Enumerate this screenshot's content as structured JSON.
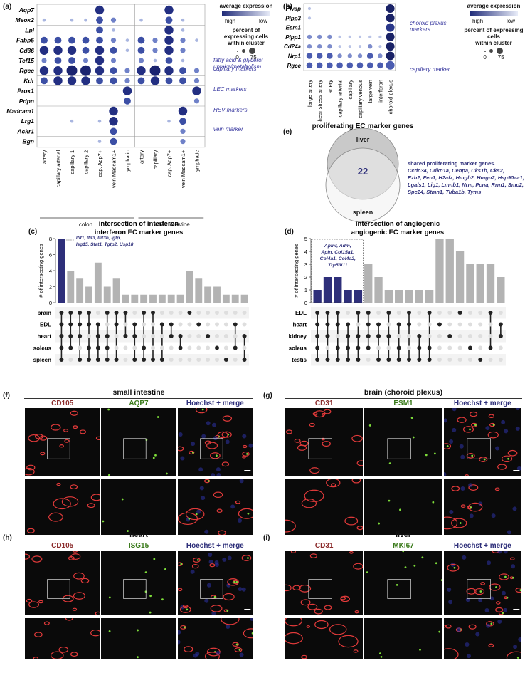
{
  "panels": {
    "a": "(a)",
    "b": "(b)",
    "c": "(c)",
    "d": "(d)",
    "e": "(e)",
    "f": "(f)",
    "g": "(g)",
    "h": "(h)",
    "i": "(i)"
  },
  "legend_a": {
    "avg_expr": "average expression",
    "high": "high",
    "low": "low",
    "pct": "percent of expressing cells",
    "pct2": "within cluster",
    "s0": "0",
    "s75": "75"
  },
  "legend_b": {
    "avg_expr": "average expression",
    "high": "high",
    "low": "low",
    "pct": "percent of expressing cells",
    "pct2": "within cluster",
    "s0": "0",
    "s75": "75"
  },
  "dotplot_a": {
    "genes": [
      "Aqp7",
      "Meox2",
      "Lpl",
      "Fabp5",
      "Cd36",
      "Tcf15",
      "Rgcc",
      "Kdr",
      "Prox1",
      "Pdpn",
      "Madcam1",
      "Lrg1",
      "Ackr1",
      "Bgn"
    ],
    "clusters": [
      "artery",
      "capillary arterial",
      "capillary 1",
      "capillary 2",
      "cap. Aqp7+",
      "vein Madcam1+",
      "lymphatic",
      "artery",
      "capillary",
      "cap. Aqp7+",
      "vein Madcam1+",
      "lymphatic"
    ],
    "groups": [
      "colon",
      "small intestine"
    ],
    "annotations": [
      "fatty acid & glycerol",
      "uptake/metabolism",
      "capillary markers",
      "LEC markers",
      "HEV markers",
      "vein marker"
    ]
  },
  "dotplot_b": {
    "genes": [
      "Plvap",
      "Plpp3",
      "Esm1",
      "Plpp1",
      "Cd24a",
      "Nrp1",
      "Rgcc"
    ],
    "clusters": [
      "large artery",
      "shear stress artery",
      "artery",
      "capillary arterial",
      "capillary",
      "capillary venous",
      "large vein",
      "interferon",
      "choroid plexus"
    ],
    "annotations": [
      "choroid plexus",
      "markers",
      "capillary marker"
    ]
  },
  "venn_e": {
    "title": "proliferating EC marker genes",
    "set1": "liver",
    "set2": "spleen",
    "count": "22",
    "shared_title": "shared proliferating marker genes.",
    "shared_genes": [
      "Ccdc34, Cdkn1a, Cenpa, Cks1b, Cks2,",
      "Ezh2, Fen1, H2afz, Hmgb2, Hmgn2, Hsp90aa1,",
      "Lgals1, Lig1, Lmnb1, Nrm, Pcna, Rrm1, Smc2,",
      "Spc24, Stmn1, Tuba1b, Tyms"
    ]
  },
  "chart_data": [
    {
      "type": "bar",
      "title": "intersection of interferon EC marker genes",
      "ylabel": "# of intersecting genes",
      "ylim": [
        0,
        8
      ],
      "yticks": [
        "0",
        "2",
        "4",
        "6",
        "8"
      ],
      "sets": [
        "brain",
        "EDL",
        "heart",
        "soleus",
        "spleen"
      ],
      "values": [
        8,
        4,
        3,
        2,
        5,
        2,
        3,
        1,
        1,
        1,
        1,
        1,
        1,
        1,
        4,
        3,
        2,
        2,
        1,
        1,
        1
      ],
      "highlight_count": 1,
      "callout": [
        "Ifit1, Ifit3, Ifit3b, Igtp,",
        "Isg15, Stat1, Tgtp2, Usp18"
      ],
      "membership": [
        [
          1,
          1,
          1,
          1,
          1
        ],
        [
          1,
          1,
          1,
          1,
          0
        ],
        [
          1,
          1,
          1,
          0,
          1
        ],
        [
          1,
          1,
          0,
          1,
          1
        ],
        [
          0,
          1,
          1,
          1,
          1
        ],
        [
          1,
          0,
          1,
          1,
          1
        ],
        [
          1,
          1,
          0,
          0,
          1
        ],
        [
          1,
          0,
          1,
          0,
          0
        ],
        [
          0,
          1,
          1,
          0,
          1
        ],
        [
          1,
          0,
          0,
          1,
          1
        ],
        [
          1,
          0,
          0,
          0,
          1
        ],
        [
          0,
          1,
          0,
          0,
          1
        ],
        [
          0,
          1,
          1,
          0,
          0
        ],
        [
          0,
          0,
          1,
          1,
          0
        ],
        [
          1,
          0,
          0,
          0,
          0
        ],
        [
          0,
          1,
          0,
          0,
          0
        ],
        [
          0,
          0,
          1,
          0,
          0
        ],
        [
          0,
          0,
          0,
          1,
          0
        ],
        [
          0,
          0,
          0,
          0,
          1
        ],
        [
          0,
          1,
          0,
          1,
          0
        ],
        [
          0,
          0,
          1,
          0,
          1
        ]
      ]
    },
    {
      "type": "bar",
      "title": "intersection of angiogenic EC marker genes",
      "ylabel": "# of intersecting genes",
      "ylim": [
        0,
        5
      ],
      "yticks": [
        "0",
        "1",
        "2",
        "3",
        "4",
        "5"
      ],
      "sets": [
        "EDL",
        "heart",
        "kidney",
        "soleus",
        "testis"
      ],
      "values": [
        1,
        2,
        2,
        1,
        1,
        3,
        2,
        1,
        1,
        1,
        1,
        1,
        5,
        5,
        4,
        3,
        3,
        3,
        2
      ],
      "highlight_count": 5,
      "callout": [
        "Aplnr, Adm,",
        "Apln, Col15a1,",
        "Col4a1, Col4a2,",
        "Trp53i11"
      ],
      "membership": [
        [
          1,
          1,
          1,
          1,
          1
        ],
        [
          1,
          1,
          1,
          0,
          1
        ],
        [
          1,
          1,
          0,
          1,
          1
        ],
        [
          0,
          1,
          1,
          1,
          1
        ],
        [
          1,
          0,
          1,
          1,
          1
        ],
        [
          1,
          1,
          1,
          1,
          0
        ],
        [
          0,
          1,
          1,
          0,
          1
        ],
        [
          1,
          0,
          1,
          0,
          1
        ],
        [
          0,
          1,
          0,
          1,
          1
        ],
        [
          1,
          1,
          0,
          0,
          1
        ],
        [
          0,
          0,
          1,
          1,
          1
        ],
        [
          1,
          0,
          0,
          1,
          1
        ],
        [
          0,
          1,
          0,
          0,
          0
        ],
        [
          0,
          0,
          1,
          0,
          0
        ],
        [
          1,
          0,
          0,
          0,
          0
        ],
        [
          0,
          0,
          0,
          1,
          0
        ],
        [
          0,
          0,
          0,
          0,
          1
        ],
        [
          1,
          0,
          0,
          1,
          0
        ],
        [
          0,
          1,
          1,
          0,
          0
        ]
      ]
    }
  ],
  "micro": {
    "f": {
      "title": "small intestine",
      "c1": "CD105",
      "c2": "AQP7",
      "c3": "Hoechst + merge"
    },
    "g": {
      "title": "brain (choroid plexus)",
      "c1": "CD31",
      "c2": "ESM1",
      "c3": "Hoechst + merge"
    },
    "h": {
      "title": "heart",
      "c1": "CD105",
      "c2": "ISG15",
      "c3": "Hoechst + merge"
    },
    "i": {
      "title": "liver",
      "c1": "CD31",
      "c2": "MKI67",
      "c3": "Hoechst + merge"
    }
  },
  "colors": {
    "navy": "#2e2f7a",
    "grey": "#b3b3b3",
    "red": "#e23a3a",
    "green": "#7ddc3a",
    "label_red": "#8b2b2b",
    "label_green": "#3a7a1a",
    "label_navy": "#2e2f7a",
    "annot": "#3a3aa0"
  }
}
